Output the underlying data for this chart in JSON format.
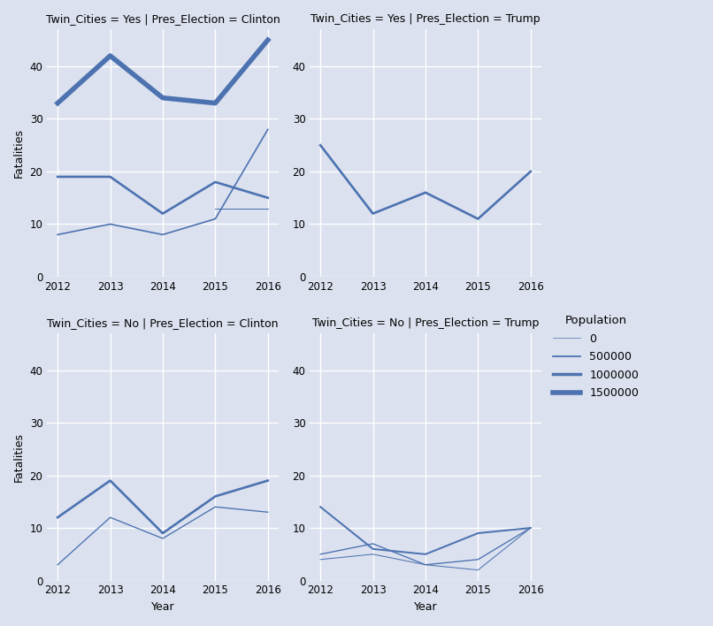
{
  "years": [
    2012,
    2013,
    2014,
    2015,
    2016
  ],
  "subplots": [
    {
      "title": "Twin_Cities = Yes | Pres_Election = Clinton",
      "row": 0,
      "col": 0,
      "lines": [
        {
          "fatalities": [
            33,
            42,
            34,
            33,
            45
          ],
          "population": 1500000
        },
        {
          "fatalities": [
            19,
            19,
            12,
            18,
            15
          ],
          "population": 600000
        },
        {
          "fatalities": [
            8,
            10,
            8,
            11,
            28
          ],
          "population": 300000
        },
        {
          "fatalities": [
            null,
            null,
            null,
            13,
            13
          ],
          "population": 100000
        }
      ]
    },
    {
      "title": "Twin_Cities = Yes | Pres_Election = Trump",
      "row": 0,
      "col": 1,
      "lines": [
        {
          "fatalities": [
            25,
            12,
            16,
            11,
            20
          ],
          "population": 600000
        }
      ]
    },
    {
      "title": "Twin_Cities = No | Pres_Election = Clinton",
      "row": 1,
      "col": 0,
      "lines": [
        {
          "fatalities": [
            12,
            19,
            9,
            16,
            19
          ],
          "population": 600000
        },
        {
          "fatalities": [
            3,
            12,
            8,
            14,
            13
          ],
          "population": 200000
        }
      ]
    },
    {
      "title": "Twin_Cities = No | Pres_Election = Trump",
      "row": 1,
      "col": 1,
      "lines": [
        {
          "fatalities": [
            14,
            6,
            5,
            9,
            10
          ],
          "population": 400000
        },
        {
          "fatalities": [
            5,
            7,
            3,
            4,
            10
          ],
          "population": 200000
        },
        {
          "fatalities": [
            4,
            5,
            3,
            2,
            10
          ],
          "population": 100000
        }
      ]
    }
  ],
  "line_color": "#4c72b0",
  "bg_color": "#dce1ef",
  "fig_color": "#dce1ef",
  "xlabel": "Year",
  "ylabel": "Fatalities",
  "legend_title": "Population",
  "legend_entries": [
    {
      "label": "0",
      "lw": 0.5
    },
    {
      "label": "500000",
      "lw": 1.3
    },
    {
      "label": "1000000",
      "lw": 2.5
    },
    {
      "label": "1500000",
      "lw": 4.0
    }
  ],
  "ylim": [
    0,
    47
  ],
  "yticks": [
    0,
    10,
    20,
    30,
    40
  ]
}
